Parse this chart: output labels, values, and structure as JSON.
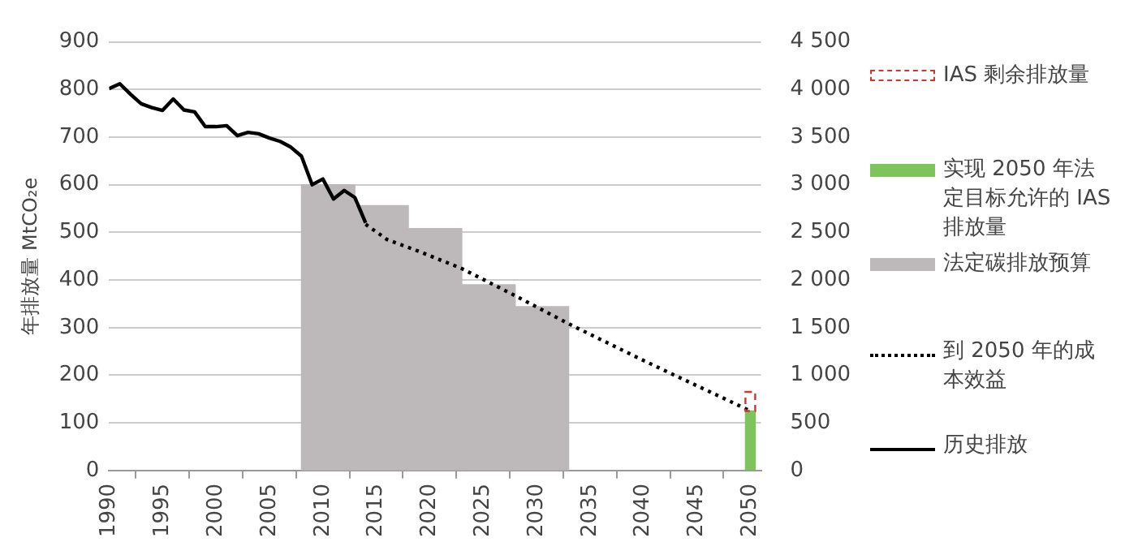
{
  "chart_data": {
    "type": "bar",
    "ylabel": "年排放量 MtCO₂e",
    "xlim": [
      1990,
      2051
    ],
    "xticks": [
      1990,
      1995,
      2000,
      2005,
      2010,
      2015,
      2020,
      2025,
      2030,
      2035,
      2040,
      2045,
      2050
    ],
    "ylim": [
      0,
      900
    ],
    "yticks": [
      0,
      100,
      200,
      300,
      400,
      500,
      600,
      700,
      800,
      900
    ],
    "y2lim": [
      0,
      4500
    ],
    "y2ticks": [
      0,
      500,
      {
        "value": 1000,
        "label": "1 000"
      },
      {
        "value": 1500,
        "label": "1 500"
      },
      {
        "value": 2000,
        "label": "2 000"
      },
      {
        "value": 2500,
        "label": "2 500"
      },
      {
        "value": 3000,
        "label": "3 000"
      },
      {
        "value": 3500,
        "label": "3 500"
      },
      {
        "value": 4000,
        "label": "4 000"
      },
      {
        "value": 4500,
        "label": "4 500"
      }
    ],
    "grid": "y",
    "legend": "right",
    "marker": "none",
    "series": [
      {
        "name": "IAS 剩余排放量",
        "color": "#d9312b",
        "line_style": "dashed",
        "x": [
          2050
        ],
        "base": [
          125
        ],
        "values": [
          40
        ]
      },
      {
        "name": "实现 2050 年法定目标允许的 IAS 排放量",
        "color": "#7dc45a",
        "x": [
          2050
        ],
        "values": [
          125
        ]
      },
      {
        "name": "法定碳排放预算",
        "color": "#bdb8b9",
        "axis": "y2",
        "x": [
          2010.5,
          2015.5,
          2020.5,
          2025.5,
          2030.5
        ],
        "values": [
          3000,
          2780,
          2540,
          1950,
          1720
        ]
      },
      {
        "name": "到 2050 年的成本效益",
        "type": "line",
        "color": "#000000",
        "line_style": "dotted",
        "x": [
          2014,
          2016,
          2019,
          2023,
          2028,
          2033,
          2040,
          2045,
          2050
        ],
        "values": [
          517,
          485,
          460,
          424,
          367,
          308,
          231,
          178,
          125
        ]
      },
      {
        "name": "历史排放",
        "type": "line",
        "color": "#000000",
        "line_style": "solid",
        "x": [
          1990,
          1991,
          1992,
          1993,
          1994,
          1995,
          1996,
          1997,
          1998,
          1999,
          2000,
          2001,
          2002,
          2003,
          2004,
          2005,
          2006,
          2007,
          2008,
          2009,
          2010,
          2011,
          2012,
          2013,
          2014
        ],
        "values": [
          802,
          812,
          790,
          770,
          762,
          756,
          780,
          757,
          753,
          722,
          722,
          724,
          703,
          710,
          707,
          698,
          691,
          679,
          660,
          600,
          612,
          570,
          588,
          573,
          520
        ]
      }
    ]
  }
}
